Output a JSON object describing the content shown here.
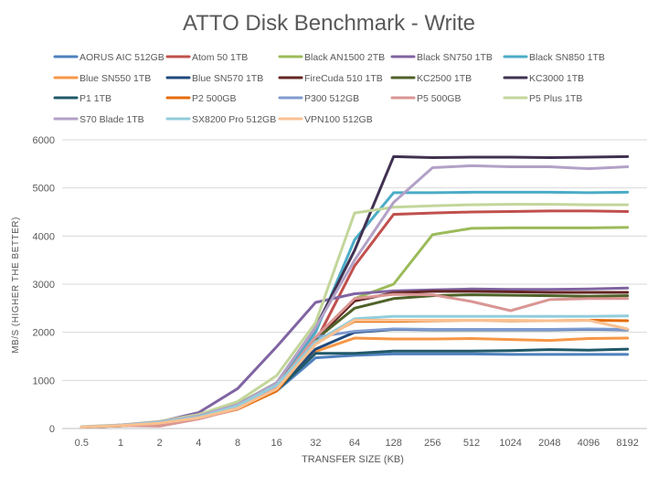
{
  "chart_data": {
    "type": "line",
    "title": "ATTO Disk Benchmark - Write",
    "xlabel": "TRANSFER SIZE (KB)",
    "ylabel": "MB/S (HIGHER THE BETTER)",
    "ylim": [
      0,
      6000
    ],
    "yticks": [
      0,
      1000,
      2000,
      3000,
      4000,
      5000,
      6000
    ],
    "grid": true,
    "legend_position": "top",
    "categories": [
      "0.5",
      "1",
      "2",
      "4",
      "8",
      "16",
      "32",
      "64",
      "128",
      "256",
      "512",
      "1024",
      "2048",
      "4096",
      "8192"
    ],
    "series": [
      {
        "name": "AORUS AIC 512GB",
        "color": "#4f81bd",
        "values": [
          30,
          55,
          110,
          200,
          420,
          780,
          1470,
          1520,
          1550,
          1550,
          1550,
          1540,
          1540,
          1540,
          1540
        ]
      },
      {
        "name": "Atom 50 1TB",
        "color": "#c0504d",
        "values": [
          35,
          65,
          120,
          230,
          440,
          860,
          1800,
          3380,
          4450,
          4480,
          4500,
          4510,
          4520,
          4520,
          4510
        ]
      },
      {
        "name": "Black AN1500 2TB",
        "color": "#9bbb59",
        "values": [
          35,
          70,
          140,
          270,
          510,
          950,
          1800,
          2700,
          3000,
          4030,
          4160,
          4170,
          4170,
          4170,
          4180
        ]
      },
      {
        "name": "Black SN750 1TB",
        "color": "#8064a2",
        "values": [
          35,
          70,
          140,
          330,
          830,
          1700,
          2620,
          2800,
          2860,
          2880,
          2900,
          2890,
          2890,
          2900,
          2920
        ]
      },
      {
        "name": "Black SN850 1TB",
        "color": "#4bacc6",
        "values": [
          35,
          65,
          125,
          240,
          470,
          940,
          2000,
          3920,
          4900,
          4900,
          4910,
          4910,
          4910,
          4900,
          4910
        ]
      },
      {
        "name": "Blue SN550 1TB",
        "color": "#f79646",
        "values": [
          30,
          60,
          115,
          220,
          420,
          810,
          1600,
          1880,
          1860,
          1860,
          1870,
          1850,
          1830,
          1870,
          1880
        ]
      },
      {
        "name": "Blue SN570 1TB",
        "color": "#1f497d",
        "values": [
          30,
          60,
          115,
          220,
          430,
          830,
          1650,
          2000,
          2060,
          2050,
          2050,
          2050,
          2050,
          2060,
          2050
        ]
      },
      {
        "name": "FireCuda 510 1TB",
        "color": "#632523",
        "values": [
          35,
          65,
          125,
          240,
          470,
          900,
          1850,
          2650,
          2820,
          2850,
          2850,
          2840,
          2830,
          2830,
          2830
        ]
      },
      {
        "name": "KC2500 1TB",
        "color": "#4f6228",
        "values": [
          35,
          65,
          125,
          240,
          470,
          900,
          1850,
          2500,
          2700,
          2760,
          2780,
          2770,
          2760,
          2750,
          2760
        ]
      },
      {
        "name": "KC3000 1TB",
        "color": "#403151",
        "values": [
          35,
          70,
          130,
          250,
          480,
          950,
          2100,
          3700,
          5650,
          5630,
          5640,
          5640,
          5630,
          5640,
          5650
        ]
      },
      {
        "name": "P1 1TB",
        "color": "#215968",
        "values": [
          30,
          55,
          110,
          210,
          410,
          790,
          1560,
          1560,
          1610,
          1610,
          1610,
          1620,
          1640,
          1630,
          1650
        ]
      },
      {
        "name": "P2 500GB",
        "color": "#e46c0a",
        "values": [
          30,
          55,
          110,
          210,
          400,
          780,
          1800,
          2230,
          2230,
          2240,
          2250,
          2240,
          2240,
          2250,
          2240
        ]
      },
      {
        "name": "P300 512GB",
        "color": "#7f9bd0",
        "values": [
          30,
          60,
          115,
          230,
          440,
          850,
          1900,
          2020,
          2070,
          2060,
          2060,
          2060,
          2060,
          2070,
          2060
        ]
      },
      {
        "name": "P5 500GB",
        "color": "#d99694",
        "values": [
          30,
          60,
          50,
          200,
          410,
          870,
          1900,
          2700,
          2790,
          2780,
          2640,
          2450,
          2680,
          2700,
          2700
        ]
      },
      {
        "name": "P5 Plus 1TB",
        "color": "#c3d69b",
        "values": [
          40,
          75,
          150,
          290,
          560,
          1100,
          2200,
          4480,
          4600,
          4630,
          4650,
          4660,
          4660,
          4650,
          4650
        ]
      },
      {
        "name": "S70 Blade 1TB",
        "color": "#b2a1c7",
        "values": [
          35,
          70,
          140,
          260,
          500,
          950,
          2100,
          3500,
          4700,
          5420,
          5460,
          5440,
          5440,
          5400,
          5440
        ]
      },
      {
        "name": "SX8200 Pro 512GB",
        "color": "#92cddc",
        "values": [
          35,
          65,
          125,
          240,
          470,
          900,
          1800,
          2280,
          2330,
          2330,
          2330,
          2330,
          2330,
          2330,
          2340
        ]
      },
      {
        "name": "VPN100 512GB",
        "color": "#fac090",
        "values": [
          30,
          60,
          110,
          220,
          420,
          820,
          1750,
          2250,
          2250,
          2250,
          2250,
          2250,
          2240,
          2250,
          2070
        ]
      }
    ]
  }
}
